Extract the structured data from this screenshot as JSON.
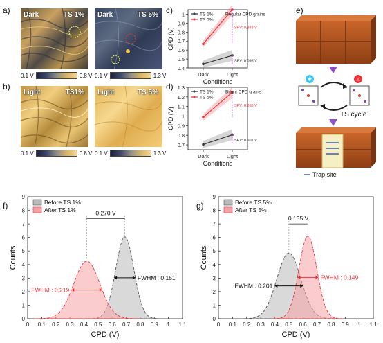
{
  "panels": {
    "a": {
      "label": "a)",
      "left_tag": "Dark",
      "left_ts": "TS 1%",
      "right_tag": "Dark",
      "right_ts": "TS 5%",
      "left_min": "0.1 V",
      "left_max": "0.8 V",
      "right_min": "0.1 V",
      "right_max": "1.3 V"
    },
    "b": {
      "label": "b)",
      "left_tag": "Light",
      "left_ts": "TS1%",
      "right_tag": "Light",
      "right_ts": "TS 5%",
      "left_min": "0.1 V",
      "left_max": "0.8 V",
      "right_min": "0.1 V",
      "right_max": "1.3 V"
    },
    "c": {
      "label": "c)"
    },
    "d": {
      "label": "d)"
    },
    "e": {
      "label": "e)",
      "ts_cycle": "TS cycle",
      "trap_site": "Trap site"
    },
    "f": {
      "label": "f)"
    },
    "g": {
      "label": "g)"
    }
  },
  "colors": {
    "ts1": "#333333",
    "ts5": "#e8343a",
    "spv": "#d65cf0",
    "brick": "#b8541f"
  },
  "chart_data": [
    {
      "id": "c",
      "type": "line",
      "title": "Regular CPD grains",
      "xlabel": "Conditions",
      "ylabel": "CPD (V)",
      "categories": [
        "Dark",
        "Light"
      ],
      "ylim": [
        0.4,
        1.05
      ],
      "yticks": [
        "0.4",
        "0.5",
        "0.6",
        "0.7",
        "0.8",
        "0.9",
        "1"
      ],
      "series": [
        {
          "name": "TS 1%",
          "values": [
            0.444,
            0.54
          ]
        },
        {
          "name": "TS 5%",
          "values": [
            0.668,
            1.051
          ]
        }
      ],
      "annotations": [
        {
          "text": "SPV: 0.383 V",
          "value_at": 0.86
        },
        {
          "text": "SPV: 0.096 V",
          "value_at": 0.49
        }
      ]
    },
    {
      "id": "d",
      "type": "line",
      "title": "Bright CPD grains",
      "xlabel": "Conditions",
      "ylabel": "CPD (V)",
      "categories": [
        "Dark",
        "Light"
      ],
      "ylim": [
        0.65,
        1.3
      ],
      "yticks": [
        "0.7",
        "0.8",
        "0.9",
        "1",
        "1.1",
        "1.2",
        "1.3"
      ],
      "series": [
        {
          "name": "TS 1%",
          "values": [
            0.705,
            0.806
          ]
        },
        {
          "name": "TS 5%",
          "values": [
            0.988,
            1.248
          ]
        }
      ],
      "annotations": [
        {
          "text": "SPV: 0.260 V",
          "value_at": 1.12
        },
        {
          "text": "SPV: 0.101 V",
          "value_at": 0.76
        }
      ]
    },
    {
      "id": "f",
      "type": "area",
      "xlabel": "CPD (V)",
      "ylabel": "Counts",
      "xlim": [
        0,
        1.1
      ],
      "ylim": [
        0,
        9
      ],
      "xticks": [
        "0",
        "0.1",
        "0.2",
        "0.3",
        "0.4",
        "0.5",
        "0.6",
        "0.7",
        "0.8",
        "0.9",
        "1",
        "1.1"
      ],
      "yticks": [
        "0",
        "1",
        "2",
        "3",
        "4",
        "5",
        "6",
        "7",
        "8",
        "9"
      ],
      "series": [
        {
          "name": "Before TS 1%",
          "peak_x": 0.69,
          "peak_y": 6.05,
          "fwhm": 0.151
        },
        {
          "name": "After TS 1%",
          "peak_x": 0.42,
          "peak_y": 4.25,
          "fwhm": 0.219
        }
      ],
      "annotations": [
        {
          "text": "0.270 V"
        },
        {
          "text": "FWHM : 0.151"
        },
        {
          "text": "FWHM : 0.219"
        }
      ]
    },
    {
      "id": "g",
      "type": "area",
      "xlabel": "CPD (V)",
      "ylabel": "Counts",
      "xlim": [
        0,
        1.1
      ],
      "ylim": [
        0,
        9
      ],
      "xticks": [
        "0",
        "0.1",
        "0.2",
        "0.3",
        "0.4",
        "0.5",
        "0.6",
        "0.7",
        "0.8",
        "0.9",
        "1",
        "1.1"
      ],
      "yticks": [
        "0",
        "1",
        "2",
        "3",
        "4",
        "5",
        "6",
        "7",
        "8",
        "9"
      ],
      "series": [
        {
          "name": "Before TS 5%",
          "peak_x": 0.5,
          "peak_y": 4.85,
          "fwhm": 0.201
        },
        {
          "name": "After TS 5%",
          "peak_x": 0.635,
          "peak_y": 6.1,
          "fwhm": 0.149
        }
      ],
      "annotations": [
        {
          "text": "0.135 V"
        },
        {
          "text": "FWHM : 0.201"
        },
        {
          "text": "FWHM : 0.149"
        }
      ]
    }
  ]
}
